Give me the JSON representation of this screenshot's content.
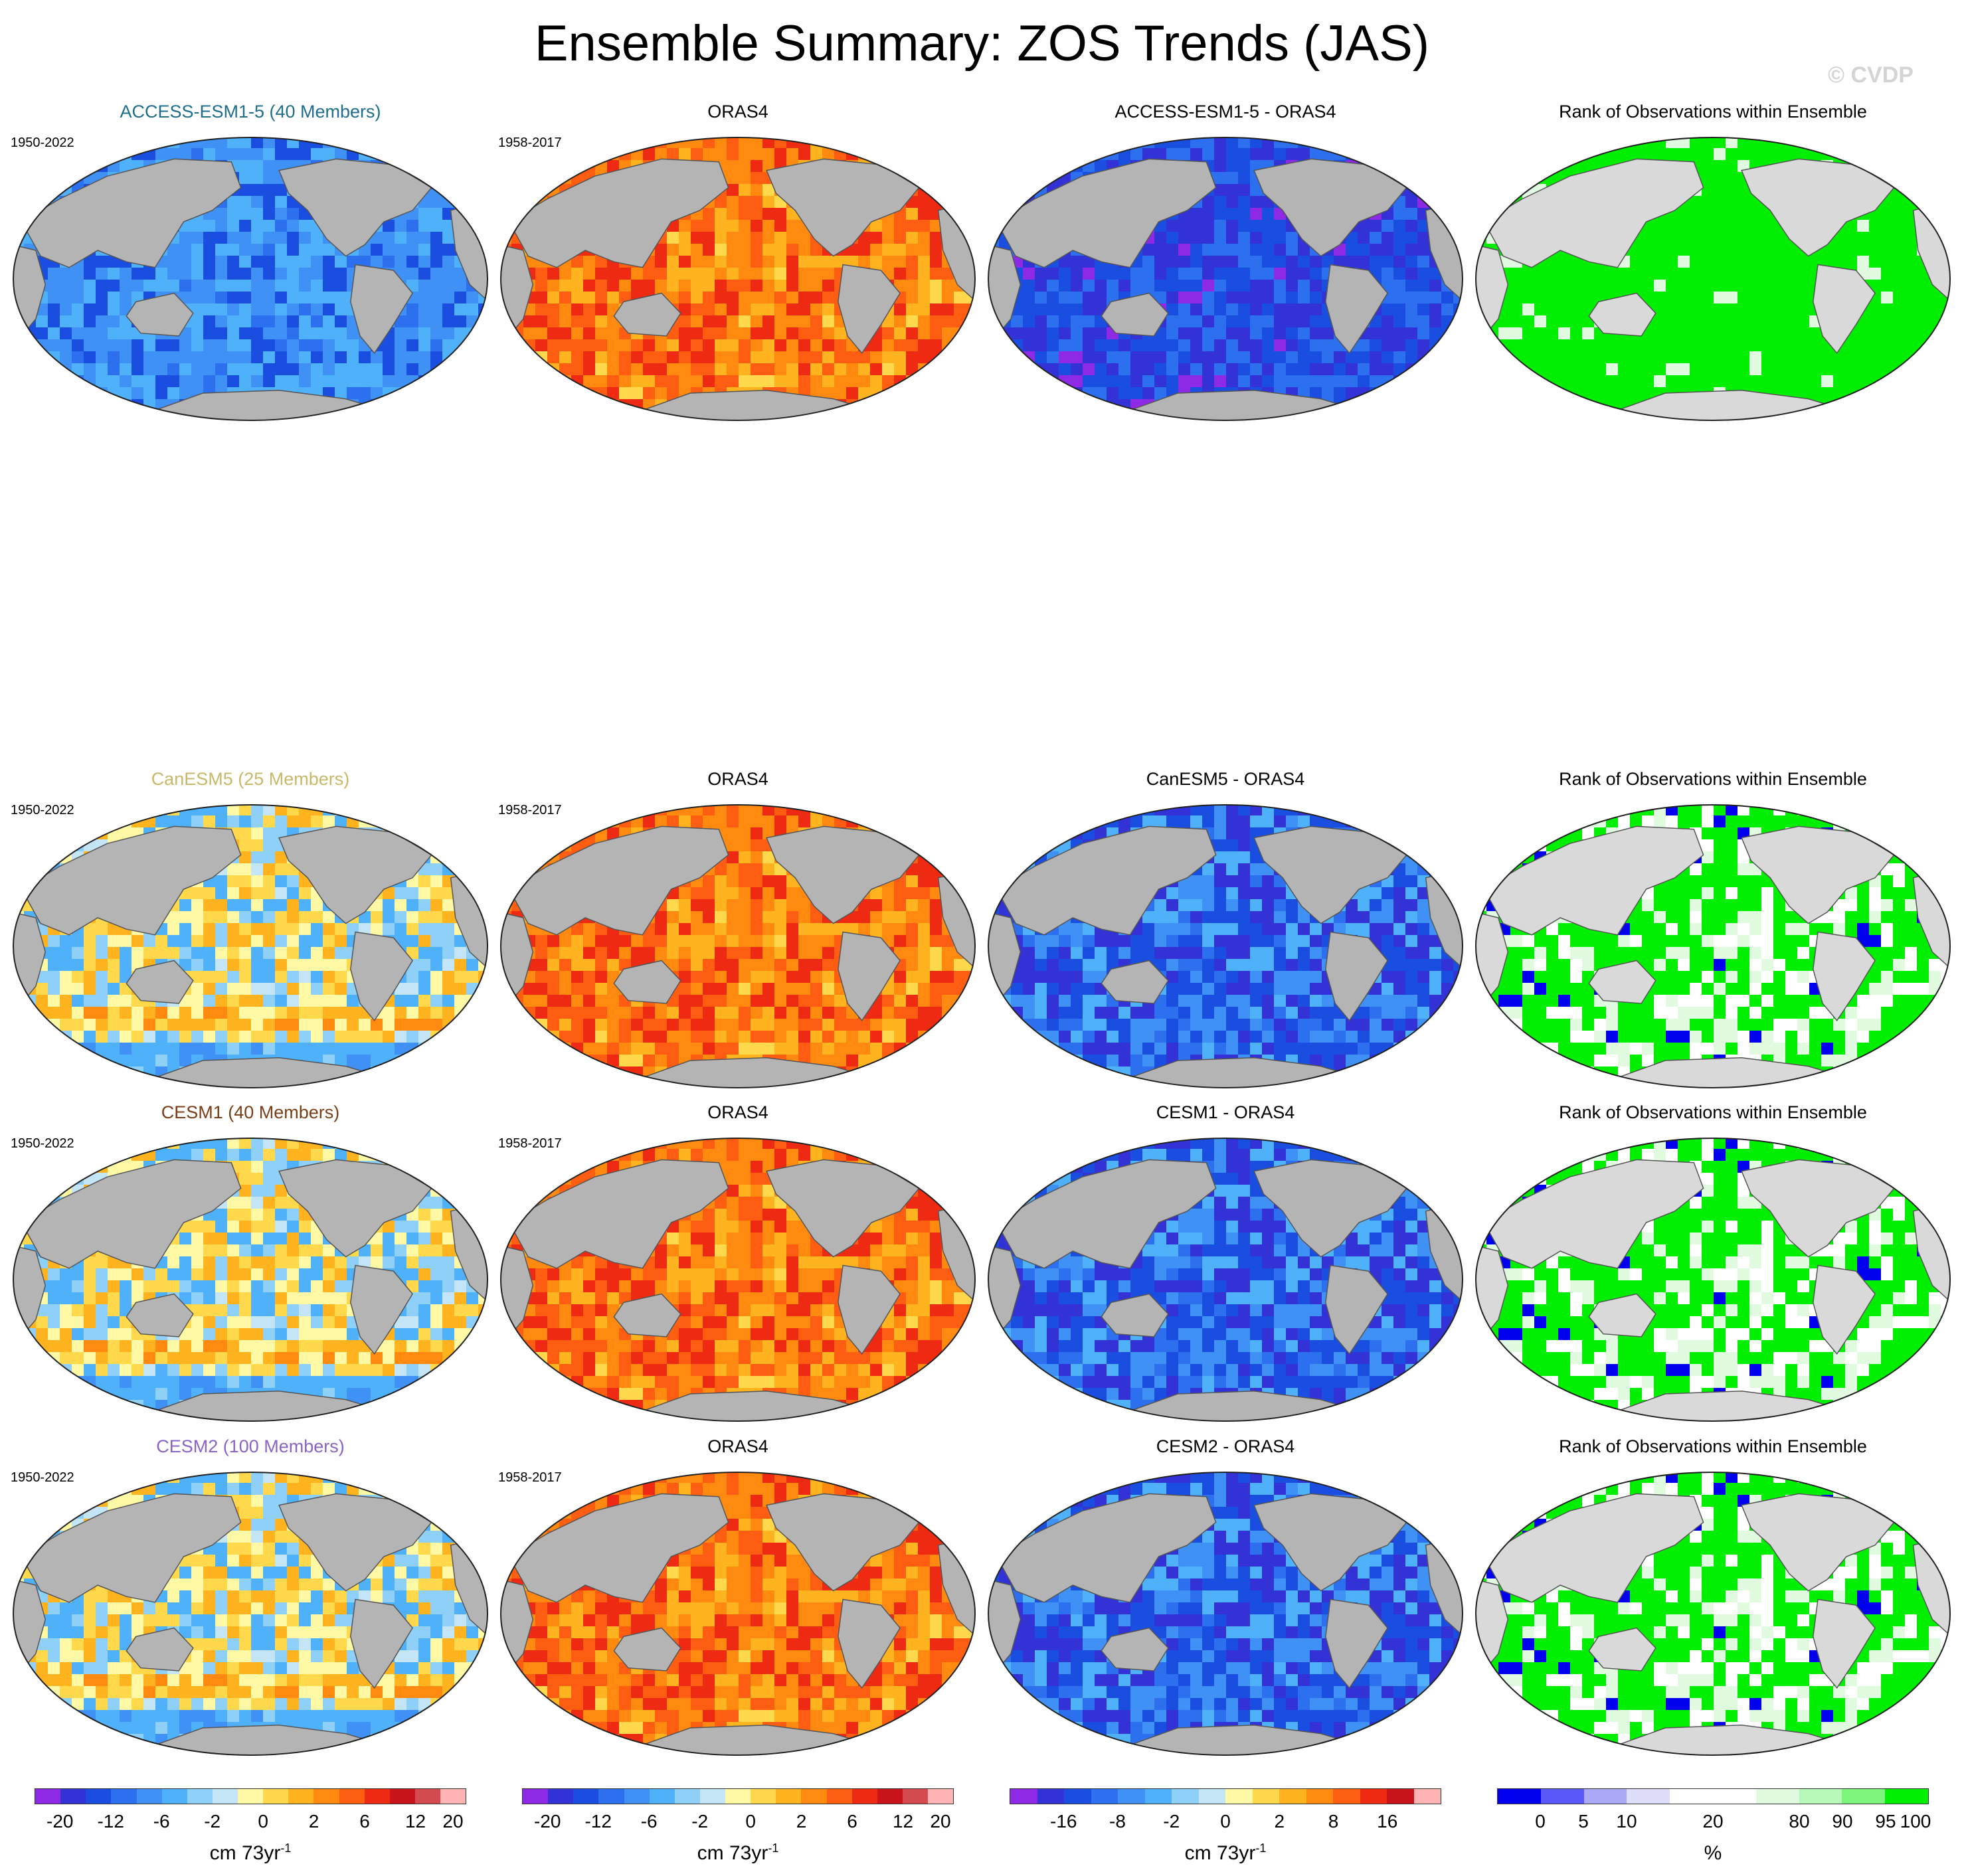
{
  "title": "Ensemble Summary: ZOS Trends (JAS)",
  "copyright": "© CVDP",
  "rows": [
    {
      "model_title": "ACCESS-ESM1-5 (40 Members)",
      "model_color": "#1f6e8c",
      "model_period": "1950-2022",
      "obs_title": "ORAS4",
      "obs_period": "1958-2017",
      "diff_title": "ACCESS-ESM1-5 - ORAS4",
      "rank_title": "Rank of Observations within Ensemble",
      "model_field": "cool",
      "diff_field": "verycool",
      "rank_field": "green"
    },
    {
      "model_title": "CanESM5 (25 Members)",
      "model_color": "#c9b869",
      "model_period": "1950-2022",
      "obs_title": "ORAS4",
      "obs_period": "1958-2017",
      "diff_title": "CanESM5 - ORAS4",
      "rank_title": "Rank of Observations within Ensemble",
      "model_field": "mixed",
      "diff_field": "coolmix",
      "rank_field": "greenmix"
    },
    {
      "model_title": "CESM1 (40 Members)",
      "model_color": "#7a3e16",
      "model_period": "1950-2022",
      "obs_title": "ORAS4",
      "obs_period": "1958-2017",
      "diff_title": "CESM1 - ORAS4",
      "rank_title": "Rank of Observations within Ensemble",
      "model_field": "mixed",
      "diff_field": "coolmix",
      "rank_field": "greenmix"
    },
    {
      "model_title": "CESM2 (100 Members)",
      "model_color": "#8a63c9",
      "model_period": "1950-2022",
      "obs_title": "ORAS4",
      "obs_period": "1958-2017",
      "diff_title": "CESM2 - ORAS4",
      "rank_title": "Rank of Observations within Ensemble",
      "model_field": "mixed",
      "diff_field": "coolmix",
      "rank_field": "greenmix"
    }
  ],
  "colorbars": [
    {
      "colors": [
        "#8e2ae6",
        "#3232d6",
        "#1a4ee0",
        "#2c6fef",
        "#3f91f5",
        "#4fb1fa",
        "#8fd0f8",
        "#c3e5f6",
        "#fff9a6",
        "#ffd84c",
        "#ffb31f",
        "#ff8a0f",
        "#ff5d12",
        "#ee2b12",
        "#c9141b",
        "#d34a4f",
        "#ffb4b4"
      ],
      "labels": [
        "-20",
        "-12",
        "-6",
        "-2",
        "0",
        "2",
        "6",
        "12",
        "20"
      ],
      "unit": "cm 73yr",
      "unit_sup": "-1"
    },
    {
      "colors": [
        "#8e2ae6",
        "#3232d6",
        "#1a4ee0",
        "#2c6fef",
        "#3f91f5",
        "#4fb1fa",
        "#8fd0f8",
        "#c3e5f6",
        "#fff9a6",
        "#ffd84c",
        "#ffb31f",
        "#ff8a0f",
        "#ff5d12",
        "#ee2b12",
        "#c9141b",
        "#d34a4f",
        "#ffb4b4"
      ],
      "labels": [
        "-20",
        "-12",
        "-6",
        "-2",
        "0",
        "2",
        "6",
        "12",
        "20"
      ],
      "unit": "cm 73yr",
      "unit_sup": "-1"
    },
    {
      "colors": [
        "#8e2ae6",
        "#3232d6",
        "#1a4ee0",
        "#2c6fef",
        "#3f91f5",
        "#4fb1fa",
        "#8fd0f8",
        "#c3e5f6",
        "#fff9a6",
        "#ffd84c",
        "#ffb31f",
        "#ff8a0f",
        "#ff5d12",
        "#ee2b12",
        "#c9141b",
        "#ffb4b4"
      ],
      "labels": [
        "-16",
        "-8",
        "-2",
        "0",
        "2",
        "8",
        "16"
      ],
      "unit": "cm 73yr",
      "unit_sup": "-1"
    },
    {
      "colors": [
        "#0000ee",
        "#5a5afa",
        "#a9a9f5",
        "#dedefa",
        "#ffffff",
        "#ffffff",
        "#e0fbe0",
        "#b8f8b8",
        "#7df57d",
        "#00ee00"
      ],
      "labels": [
        "0",
        "5",
        "10",
        "20",
        "80",
        "90",
        "95",
        "100"
      ],
      "unit": "%",
      "unit_sup": ""
    }
  ]
}
